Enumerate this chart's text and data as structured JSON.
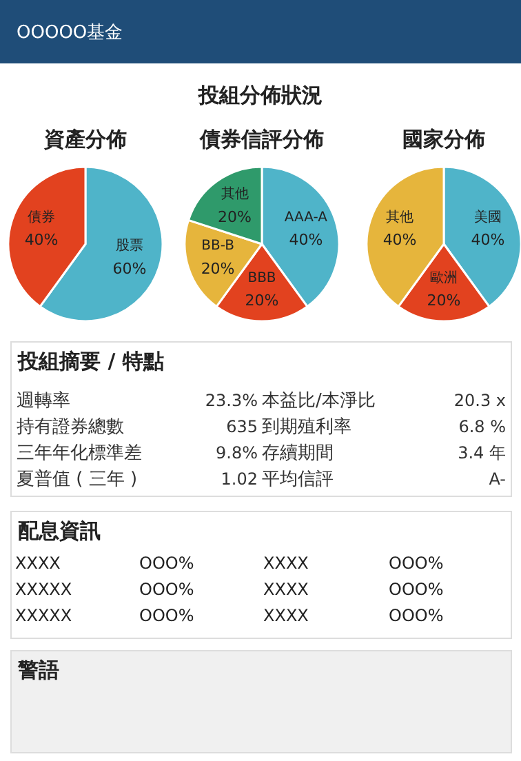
{
  "chart_data": [
    {
      "type": "other",
      "title": "OOOOO基金",
      "subtitle": "投組分佈狀況"
    },
    {
      "type": "pie",
      "title": "資產分佈",
      "categories": [
        "股票",
        "債券"
      ],
      "values": [
        60,
        40
      ],
      "colors": [
        "#4fb4c9",
        "#e2421f"
      ],
      "value_labels": [
        "60%",
        "40%"
      ]
    },
    {
      "type": "pie",
      "title": "債券信評分佈",
      "categories": [
        "AAA-A",
        "BBB",
        "BB-B",
        "其他"
      ],
      "values": [
        40,
        20,
        20,
        20
      ],
      "colors": [
        "#4fb4c9",
        "#e2421f",
        "#e6b53c",
        "#2f9a6b"
      ],
      "value_labels": [
        "40%",
        "20%",
        "20%",
        "20%"
      ]
    },
    {
      "type": "pie",
      "title": "國家分佈",
      "categories": [
        "美國",
        "歐洲",
        "其他"
      ],
      "values": [
        40,
        20,
        40
      ],
      "colors": [
        "#4fb4c9",
        "#e2421f",
        "#e6b53c"
      ],
      "value_labels": [
        "40%",
        "20%",
        "40%"
      ]
    },
    {
      "type": "other",
      "title": "投組摘要 / 特點",
      "annotations": [
        "週轉率",
        "23.3%",
        "本益比/本淨比",
        "20.3 x",
        "持有證券總數",
        "635",
        "到期殖利率",
        "6.8 %",
        "三年年化標準差",
        "9.8%",
        "存續期間",
        "3.4 年",
        "夏普值 ( 三年 )",
        "1.02",
        "平均信評",
        "A-"
      ]
    },
    {
      "type": "other",
      "title": "配息資訊",
      "annotations": [
        "XXXX",
        "OOO%",
        "XXXX",
        "OOO%",
        "XXXXX",
        "OOO%",
        "XXXX",
        "OOO%",
        "XXXXX",
        "OOO%",
        "XXXX",
        "OOO%"
      ]
    },
    {
      "type": "other",
      "title": "警語"
    }
  ]
}
